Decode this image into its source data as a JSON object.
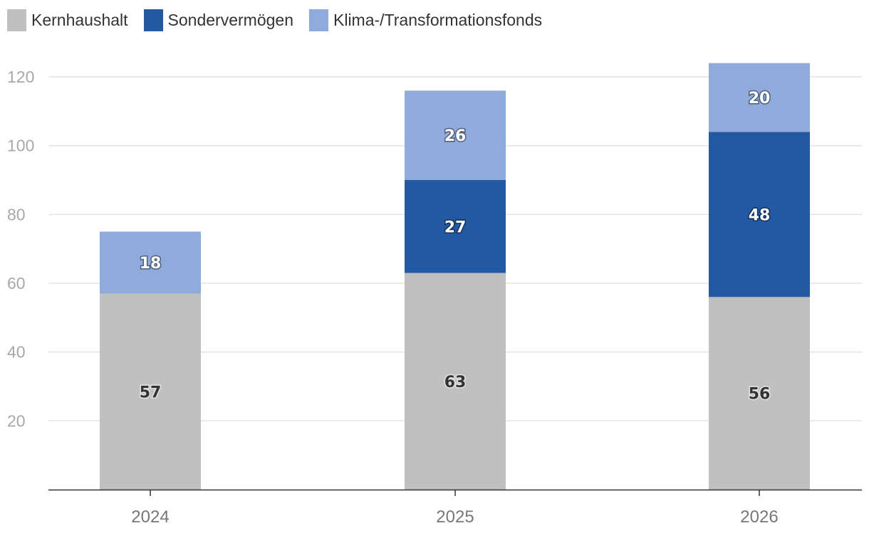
{
  "chart_data": {
    "type": "bar",
    "stacked": true,
    "categories": [
      "2024",
      "2025",
      "2026"
    ],
    "series": [
      {
        "name": "Kernhaushalt",
        "values": [
          57,
          63,
          56
        ],
        "color": "#c0c0c0"
      },
      {
        "name": "Sondervermögen",
        "values": [
          0,
          27,
          48
        ],
        "color": "#2359a3"
      },
      {
        "name": "Klima-/Transformationsfonds",
        "values": [
          18,
          26,
          20
        ],
        "color": "#8eabdb"
      }
    ],
    "data_label_colors": [
      "dark",
      "light",
      "light"
    ],
    "title": "",
    "xlabel": "",
    "ylabel": "",
    "ylim": [
      0,
      120
    ],
    "y_ticks": [
      20,
      40,
      60,
      80,
      100,
      120
    ],
    "grid": true,
    "legend_position": "top-left"
  }
}
